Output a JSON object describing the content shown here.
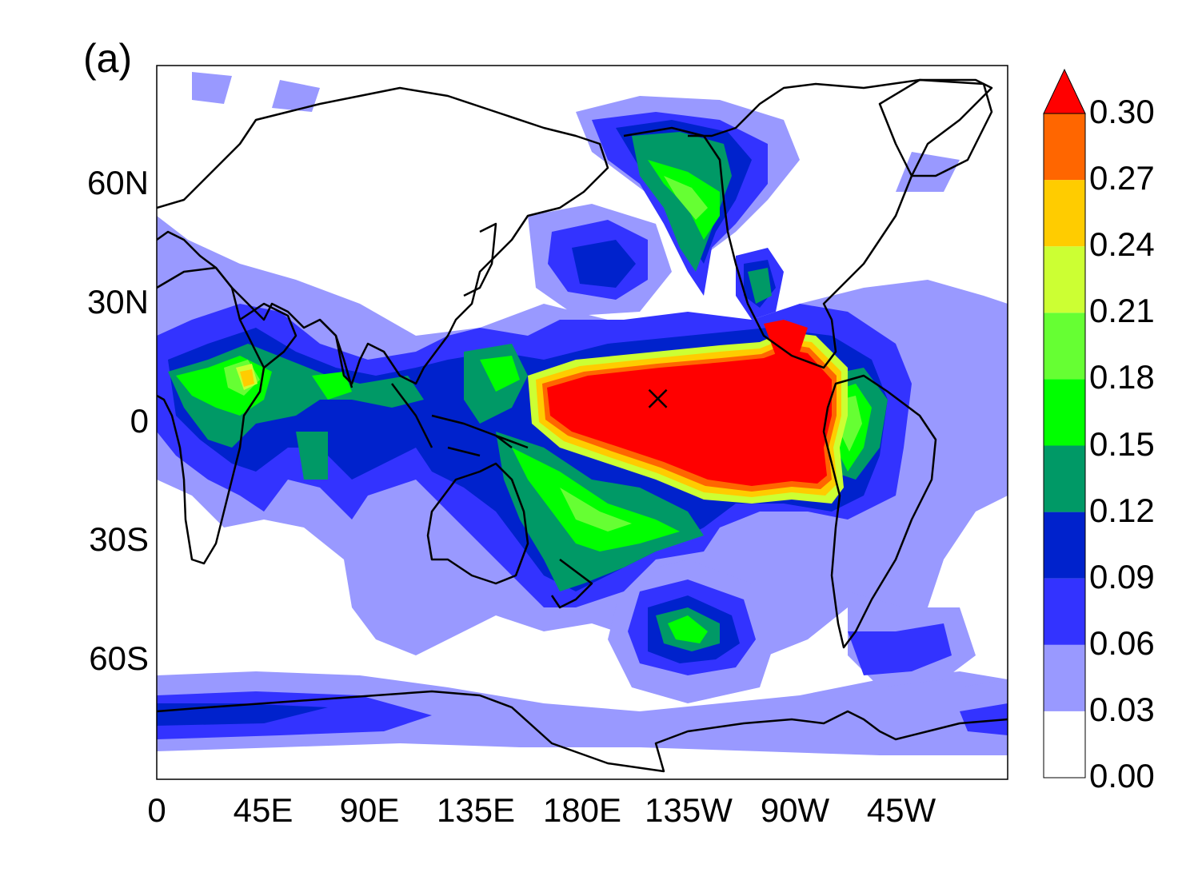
{
  "panel_label": "(a)",
  "colors": {
    "levels": [
      "#ffffff",
      "#9999ff",
      "#3333ff",
      "#0022cc",
      "#009966",
      "#00ff00",
      "#66ff33",
      "#ccff33",
      "#ffcc00",
      "#ff6600",
      "#ff0000"
    ],
    "coastline": "#000000",
    "marker": "#000000"
  },
  "map": {
    "projection": "cylindrical-equidistant",
    "center_longitude": 180,
    "lon_range": [
      0,
      360
    ],
    "lat_range": [
      -90,
      90
    ],
    "lat_ticks": [
      {
        "value": 60,
        "label": "60N"
      },
      {
        "value": 30,
        "label": "30N"
      },
      {
        "value": 0,
        "label": "0"
      },
      {
        "value": -30,
        "label": "30S"
      },
      {
        "value": -60,
        "label": "60S"
      }
    ],
    "lon_ticks": [
      {
        "value": 0,
        "label": "0"
      },
      {
        "value": 45,
        "label": "45E"
      },
      {
        "value": 90,
        "label": "90E"
      },
      {
        "value": 135,
        "label": "135E"
      },
      {
        "value": 180,
        "label": "180E"
      },
      {
        "value": 225,
        "label": "135W"
      },
      {
        "value": 270,
        "label": "90W"
      },
      {
        "value": 315,
        "label": "45W"
      }
    ],
    "marker": {
      "symbol": "x",
      "lon": 212,
      "lat": 6
    }
  },
  "colorbar": {
    "labels": [
      "0.30",
      "0.27",
      "0.24",
      "0.21",
      "0.18",
      "0.15",
      "0.12",
      "0.09",
      "0.06",
      "0.03",
      "0.00"
    ],
    "triangle_top": true
  }
}
